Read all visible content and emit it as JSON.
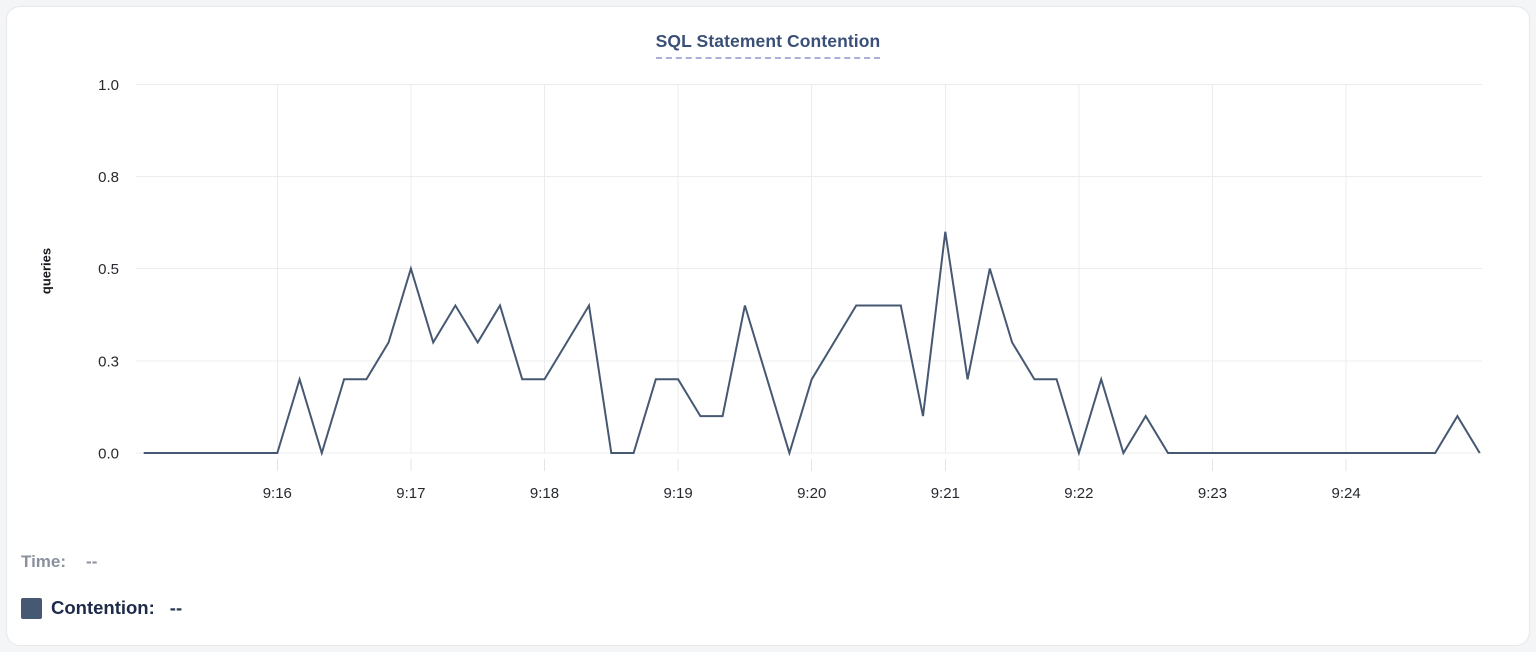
{
  "chart": {
    "colors": {
      "line": "#475872",
      "grid": "#ececee",
      "tick_stub": "#e3e4e7",
      "tick_text": "#26292e",
      "title": "#3a5078",
      "title_underline": "#a9b1d9"
    }
  },
  "chart_data": {
    "type": "line",
    "title": "SQL Statement Contention",
    "xlabel": "",
    "ylabel": "queries",
    "ylim": [
      0,
      1
    ],
    "grid": true,
    "legend_position": "bottom-left",
    "y_ticks": [
      {
        "value": 0,
        "label": "0.0"
      },
      {
        "value": 0.25,
        "label": "0.3"
      },
      {
        "value": 0.5,
        "label": "0.5"
      },
      {
        "value": 0.75,
        "label": "0.8"
      },
      {
        "value": 1,
        "label": "1.0"
      }
    ],
    "x_ticks": [
      "9:16",
      "9:17",
      "9:18",
      "9:19",
      "9:20",
      "9:21",
      "9:22",
      "9:23",
      "9:24"
    ],
    "series": [
      {
        "name": "Contention",
        "color": "#475872",
        "start_time": "9:15:00",
        "interval_seconds": 10,
        "values": [
          0,
          0,
          0,
          0,
          0,
          0,
          0,
          0.2,
          0,
          0.2,
          0.2,
          0.3,
          0.5,
          0.3,
          0.4,
          0.3,
          0.4,
          0.2,
          0.2,
          0.3,
          0.4,
          0,
          0,
          0.2,
          0.2,
          0.1,
          0.1,
          0.4,
          0.2,
          0,
          0.2,
          0.3,
          0.4,
          0.4,
          0.4,
          0.1,
          0.6,
          0.2,
          0.5,
          0.3,
          0.2,
          0.2,
          0,
          0.2,
          0,
          0.1,
          0,
          0,
          0,
          0,
          0,
          0,
          0,
          0,
          0,
          0,
          0,
          0,
          0,
          0.1,
          0
        ]
      }
    ]
  },
  "legend": {
    "time_label": "Time:",
    "time_value": "--",
    "series_label": "Contention:",
    "series_value": "--",
    "swatch_color": "#475872"
  }
}
